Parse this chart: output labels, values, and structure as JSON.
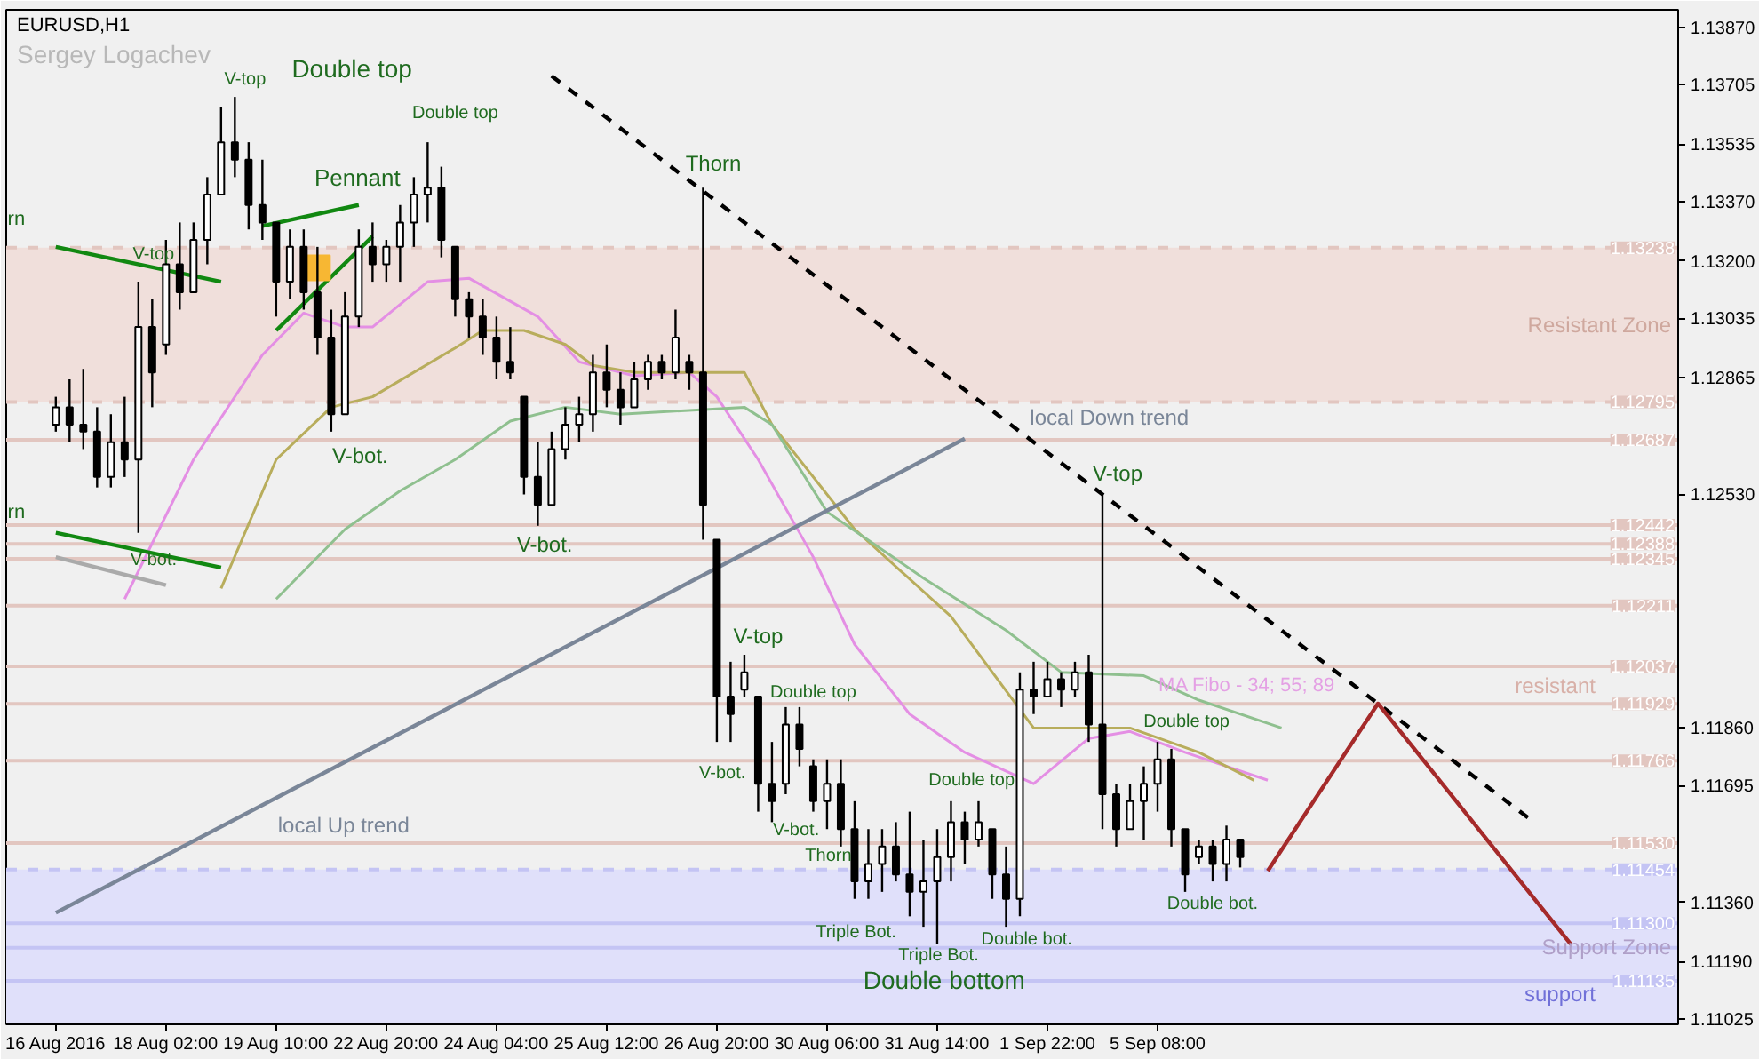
{
  "chart_data": {
    "type": "candlestick",
    "title": "EURUSD,H1",
    "subtitle": "Sergey Logachev",
    "color": "#000000",
    "categories": [
      "16 Aug 2016",
      null,
      null,
      null,
      null,
      null,
      null,
      null,
      "18 Aug 02:00",
      null,
      null,
      null,
      null,
      null,
      null,
      null,
      "19 Aug 10:00",
      null,
      null,
      null,
      null,
      null,
      null,
      null,
      "22 Aug 20:00",
      null,
      null,
      null,
      null,
      null,
      null,
      null,
      "24 Aug 04:00",
      null,
      null,
      null,
      null,
      null,
      null,
      null,
      "25 Aug 12:00",
      null,
      null,
      null,
      null,
      null,
      null,
      null,
      "26 Aug 20:00",
      null,
      null,
      null,
      null,
      null,
      null,
      null,
      "30 Aug 06:00",
      null,
      null,
      null,
      null,
      null,
      null,
      null,
      "31 Aug 14:00",
      null,
      null,
      null,
      null,
      null,
      null,
      null,
      "1 Sep 22:00",
      null,
      null,
      null,
      null,
      null,
      null,
      null,
      "5 Sep 08:00",
      null,
      null,
      null,
      null,
      null,
      null,
      null,
      null,
      null,
      null,
      null,
      null,
      null,
      null,
      null,
      null,
      null,
      null,
      null,
      null,
      null,
      null,
      null,
      null,
      null,
      null,
      null,
      null,
      null,
      null,
      null,
      null,
      null,
      null,
      null,
      null,
      null
    ],
    "ohlc": [
      [
        1.1273,
        1.1281,
        1.1271,
        1.1278
      ],
      [
        1.1278,
        1.1286,
        1.1268,
        1.1273
      ],
      [
        1.1273,
        1.1289,
        1.1266,
        1.1271
      ],
      [
        1.1271,
        1.1278,
        1.1255,
        1.1258
      ],
      [
        1.1258,
        1.1276,
        1.1255,
        1.1268
      ],
      [
        1.1268,
        1.1281,
        1.1258,
        1.1263
      ],
      [
        1.1263,
        1.1314,
        1.1242,
        1.1301
      ],
      [
        1.1301,
        1.1309,
        1.1278,
        1.1288
      ],
      [
        1.1296,
        1.1326,
        1.1293,
        1.1319
      ],
      [
        1.1319,
        1.1331,
        1.1306,
        1.1311
      ],
      [
        1.1311,
        1.1331,
        1.1311,
        1.1326
      ],
      [
        1.1326,
        1.1344,
        1.1319,
        1.1339
      ],
      [
        1.1339,
        1.1364,
        1.1339,
        1.1354
      ],
      [
        1.1354,
        1.1367,
        1.1344,
        1.1349
      ],
      [
        1.1349,
        1.1354,
        1.1329,
        1.1336
      ],
      [
        1.1336,
        1.1349,
        1.1326,
        1.1331
      ],
      [
        1.1331,
        1.1331,
        1.1304,
        1.1314
      ],
      [
        1.1314,
        1.1329,
        1.1309,
        1.1324
      ],
      [
        1.1324,
        1.1329,
        1.1306,
        1.1311
      ],
      [
        1.1311,
        1.1324,
        1.1293,
        1.1298
      ],
      [
        1.1298,
        1.1306,
        1.1271,
        1.1276
      ],
      [
        1.1276,
        1.1311,
        1.1276,
        1.1304
      ],
      [
        1.1304,
        1.1329,
        1.1301,
        1.1324
      ],
      [
        1.1324,
        1.1331,
        1.1314,
        1.1319
      ],
      [
        1.1319,
        1.1326,
        1.1314,
        1.1324
      ],
      [
        1.1324,
        1.1336,
        1.1314,
        1.1331
      ],
      [
        1.1331,
        1.1344,
        1.1324,
        1.1339
      ],
      [
        1.1339,
        1.1354,
        1.1331,
        1.1341
      ],
      [
        1.1341,
        1.1347,
        1.1321,
        1.1326
      ],
      [
        1.1324,
        1.1324,
        1.1304,
        1.1309
      ],
      [
        1.1309,
        1.1311,
        1.1298,
        1.1304
      ],
      [
        1.1304,
        1.1309,
        1.1293,
        1.1298
      ],
      [
        1.1298,
        1.1304,
        1.1286,
        1.1291
      ],
      [
        1.1291,
        1.1301,
        1.1286,
        1.1288
      ],
      [
        1.1281,
        1.1281,
        1.1253,
        1.1258
      ],
      [
        1.1258,
        1.1268,
        1.1244,
        1.125
      ],
      [
        1.125,
        1.1271,
        1.125,
        1.1266
      ],
      [
        1.1266,
        1.1278,
        1.1263,
        1.1273
      ],
      [
        1.1273,
        1.1281,
        1.1268,
        1.1276
      ],
      [
        1.1276,
        1.1293,
        1.1271,
        1.1288
      ],
      [
        1.1288,
        1.1296,
        1.1278,
        1.1283
      ],
      [
        1.1283,
        1.1288,
        1.1273,
        1.1278
      ],
      [
        1.1278,
        1.1291,
        1.1278,
        1.1286
      ],
      [
        1.1286,
        1.1293,
        1.1283,
        1.1291
      ],
      [
        1.1291,
        1.1293,
        1.1286,
        1.1288
      ],
      [
        1.1288,
        1.1306,
        1.1286,
        1.1298
      ],
      [
        1.1291,
        1.1293,
        1.1283,
        1.1288
      ],
      [
        1.1288,
        1.1341,
        1.124,
        1.125
      ],
      [
        1.124,
        1.124,
        1.1182,
        1.1195
      ],
      [
        1.1195,
        1.1205,
        1.1182,
        1.119
      ],
      [
        1.1197,
        1.1207,
        1.1195,
        1.1202
      ],
      [
        1.1195,
        1.1195,
        1.1162,
        1.117
      ],
      [
        1.117,
        1.1182,
        1.1159,
        1.1165
      ],
      [
        1.117,
        1.1192,
        1.1167,
        1.1187
      ],
      [
        1.1187,
        1.1192,
        1.1175,
        1.118
      ],
      [
        1.1175,
        1.1177,
        1.1162,
        1.1165
      ],
      [
        1.1165,
        1.1177,
        1.1157,
        1.117
      ],
      [
        1.117,
        1.1177,
        1.1152,
        1.1157
      ],
      [
        1.1157,
        1.1165,
        1.1137,
        1.1142
      ],
      [
        1.1142,
        1.1157,
        1.1137,
        1.1147
      ],
      [
        1.1147,
        1.1157,
        1.1139,
        1.1152
      ],
      [
        1.1152,
        1.1159,
        1.1142,
        1.1144
      ],
      [
        1.1144,
        1.1162,
        1.1132,
        1.1139
      ],
      [
        1.1139,
        1.1154,
        1.1129,
        1.1142
      ],
      [
        1.1142,
        1.1157,
        1.1124,
        1.1149
      ],
      [
        1.1149,
        1.1165,
        1.1142,
        1.1159
      ],
      [
        1.1159,
        1.1162,
        1.1147,
        1.1154
      ],
      [
        1.1154,
        1.1165,
        1.1152,
        1.1159
      ],
      [
        1.1157,
        1.1157,
        1.1137,
        1.1144
      ],
      [
        1.1144,
        1.1152,
        1.1129,
        1.1137
      ],
      [
        1.1137,
        1.1202,
        1.1132,
        1.1197
      ],
      [
        1.1197,
        1.1205,
        1.119,
        1.1195
      ],
      [
        1.1195,
        1.1205,
        1.1195,
        1.12
      ],
      [
        1.12,
        1.1202,
        1.1192,
        1.1197
      ],
      [
        1.1197,
        1.1205,
        1.1195,
        1.1202
      ],
      [
        1.1202,
        1.1207,
        1.1182,
        1.1187
      ],
      [
        1.1187,
        1.1253,
        1.1157,
        1.1167
      ],
      [
        1.1167,
        1.117,
        1.1152,
        1.1157
      ],
      [
        1.1157,
        1.117,
        1.1157,
        1.1165
      ],
      [
        1.1165,
        1.1175,
        1.1154,
        1.117
      ],
      [
        1.117,
        1.1182,
        1.1162,
        1.1177
      ],
      [
        1.1177,
        1.118,
        1.1152,
        1.1157
      ],
      [
        1.1157,
        1.1157,
        1.1139,
        1.1144
      ],
      [
        1.1149,
        1.1154,
        1.1147,
        1.1152
      ],
      [
        1.1152,
        1.1154,
        1.1142,
        1.1147
      ],
      [
        1.1147,
        1.1158,
        1.1142,
        1.1154
      ],
      [
        1.1154,
        1.1154,
        1.1146,
        1.1149
      ],
      null,
      null,
      null,
      null,
      null,
      null,
      null,
      null,
      null,
      null,
      null,
      null,
      null,
      null,
      null,
      null,
      null,
      null,
      null,
      null,
      null,
      null,
      null,
      null,
      null,
      null,
      null,
      null,
      null,
      null,
      null
    ],
    "series": [
      {
        "type": "line",
        "color": "#e48fe4",
        "values": [
          null,
          null,
          null,
          null,
          null,
          1.1223,
          null,
          null,
          null,
          null,
          1.1263,
          null,
          null,
          null,
          null,
          1.1293,
          null,
          null,
          1.1305,
          null,
          null,
          1.1301,
          null,
          1.1301,
          null,
          null,
          null,
          1.1314,
          null,
          null,
          1.1315,
          null,
          null,
          null,
          null,
          1.1304,
          null,
          null,
          1.1291,
          null,
          null,
          null,
          1.1287,
          null,
          null,
          null,
          1.1288,
          null,
          1.1281,
          null,
          null,
          1.1263,
          null,
          null,
          null,
          1.1235,
          null,
          null,
          1.121,
          null,
          null,
          null,
          1.119,
          null,
          null,
          null,
          1.1179,
          null,
          null,
          null,
          null,
          1.117,
          null,
          null,
          null,
          1.1183,
          null,
          null,
          1.1185,
          null,
          null,
          null,
          1.1179,
          null,
          null,
          null,
          null,
          null,
          1.1171,
          null,
          null,
          null,
          null,
          null,
          null,
          null,
          null,
          null,
          null,
          null,
          null,
          null,
          null,
          null,
          null,
          null,
          null,
          null,
          null,
          null,
          null,
          null,
          null,
          null,
          null,
          null,
          null,
          null
        ]
      },
      {
        "type": "line",
        "color": "#b8ad5c",
        "values": [
          null,
          null,
          null,
          null,
          null,
          null,
          null,
          null,
          null,
          null,
          null,
          null,
          1.1226,
          null,
          null,
          null,
          1.1263,
          null,
          null,
          null,
          1.1278,
          null,
          null,
          1.1281,
          null,
          null,
          null,
          null,
          null,
          1.1295,
          null,
          1.13,
          null,
          null,
          1.13,
          null,
          null,
          1.1296,
          null,
          1.129,
          null,
          null,
          1.1288,
          null,
          null,
          null,
          null,
          null,
          null,
          null,
          1.1288,
          null,
          1.1273,
          null,
          null,
          null,
          null,
          null,
          1.1243,
          null,
          null,
          null,
          null,
          null,
          null,
          1.1218,
          null,
          null,
          null,
          null,
          null,
          1.1186,
          null,
          null,
          null,
          1.1186,
          null,
          null,
          1.1186,
          null,
          null,
          null,
          null,
          1.1179,
          null,
          null,
          null,
          1.1171,
          null,
          null,
          null,
          null,
          null,
          null,
          null,
          null,
          null,
          null,
          null,
          null,
          null,
          null,
          null,
          null,
          null,
          null,
          null,
          null,
          null,
          null,
          null,
          null,
          null,
          null,
          null,
          null,
          null,
          null
        ]
      },
      {
        "type": "line",
        "color": "#8fc08f",
        "values": [
          null,
          null,
          null,
          null,
          null,
          null,
          null,
          null,
          null,
          null,
          null,
          null,
          null,
          null,
          null,
          null,
          1.1223,
          null,
          null,
          null,
          null,
          1.1243,
          null,
          null,
          null,
          1.1254,
          null,
          null,
          null,
          1.1263,
          null,
          null,
          null,
          1.1274,
          null,
          null,
          null,
          1.1278,
          null,
          null,
          null,
          1.1276,
          null,
          null,
          null,
          null,
          null,
          null,
          null,
          null,
          1.1278,
          null,
          1.1273,
          null,
          null,
          null,
          1.1248,
          null,
          null,
          null,
          null,
          null,
          null,
          1.1229,
          null,
          null,
          null,
          null,
          null,
          1.1214,
          null,
          null,
          null,
          1.1202,
          null,
          null,
          null,
          null,
          null,
          1.1201,
          null,
          null,
          null,
          1.1194,
          null,
          null,
          null,
          null,
          null,
          1.1186,
          null,
          null,
          null,
          null,
          null,
          null,
          null,
          null,
          null,
          null,
          null,
          null,
          null,
          null,
          null,
          null,
          null,
          null,
          null,
          null,
          null,
          null,
          null,
          null,
          null,
          null,
          null,
          null
        ]
      },
      {
        "type": "line",
        "color": "#7a8698",
        "values": [
          1.1133,
          null,
          null,
          null,
          null,
          null,
          null,
          null,
          null,
          null,
          null,
          null,
          null,
          null,
          null,
          null,
          null,
          null,
          null,
          null,
          null,
          null,
          null,
          null,
          null,
          null,
          null,
          null,
          null,
          null,
          null,
          null,
          null,
          null,
          null,
          null,
          null,
          null,
          null,
          null,
          null,
          null,
          null,
          null,
          null,
          null,
          null,
          null,
          null,
          null,
          null,
          null,
          null,
          null,
          null,
          null,
          null,
          null,
          null,
          null,
          null,
          null,
          null,
          null,
          null,
          null,
          1.1269,
          null,
          null,
          null,
          null,
          null,
          null,
          null,
          null,
          null,
          null,
          null,
          null,
          null,
          null,
          null,
          null,
          null,
          null,
          null,
          null,
          null,
          null,
          null,
          null,
          null,
          null,
          null,
          null,
          null,
          null,
          null,
          null,
          null,
          null,
          null,
          null,
          null,
          null,
          null,
          null,
          null,
          null,
          null,
          null,
          null,
          null,
          null,
          null,
          null,
          null,
          null
        ]
      },
      {
        "type": "line",
        "color": "#000000",
        "line_style": "dashed",
        "values": [
          null,
          null,
          null,
          null,
          null,
          null,
          null,
          null,
          null,
          null,
          null,
          null,
          null,
          null,
          null,
          null,
          null,
          null,
          null,
          null,
          null,
          null,
          null,
          null,
          null,
          null,
          null,
          null,
          null,
          null,
          null,
          null,
          null,
          null,
          null,
          null,
          1.1373,
          null,
          null,
          null,
          null,
          null,
          null,
          null,
          null,
          null,
          null,
          null,
          null,
          null,
          null,
          null,
          null,
          null,
          null,
          null,
          null,
          null,
          null,
          null,
          null,
          null,
          null,
          null,
          null,
          null,
          null,
          null,
          null,
          null,
          null,
          null,
          null,
          null,
          null,
          null,
          null,
          null,
          null,
          null,
          null,
          null,
          null,
          null,
          null,
          null,
          null,
          null,
          null,
          null,
          null,
          null,
          null,
          null,
          null,
          null,
          null,
          null,
          null,
          null,
          null,
          null,
          null,
          null,
          null,
          null,
          null,
          1.116,
          null,
          null,
          null,
          null,
          null,
          null,
          null,
          null,
          null,
          null
        ]
      },
      {
        "type": "line",
        "color": "#a52a2a",
        "values": [
          null,
          null,
          null,
          null,
          null,
          null,
          null,
          null,
          null,
          null,
          null,
          null,
          null,
          null,
          null,
          null,
          null,
          null,
          null,
          null,
          null,
          null,
          null,
          null,
          null,
          null,
          null,
          null,
          null,
          null,
          null,
          null,
          null,
          null,
          null,
          null,
          null,
          null,
          null,
          null,
          null,
          null,
          null,
          null,
          null,
          null,
          null,
          null,
          null,
          null,
          null,
          null,
          null,
          null,
          null,
          null,
          null,
          null,
          null,
          null,
          null,
          null,
          null,
          null,
          null,
          null,
          null,
          null,
          null,
          null,
          null,
          null,
          null,
          null,
          null,
          null,
          null,
          null,
          null,
          null,
          null,
          null,
          null,
          null,
          null,
          null,
          null,
          null,
          1.1145,
          null,
          null,
          null,
          null,
          null,
          null,
          null,
          1.1193,
          null,
          null,
          null,
          null,
          null,
          null,
          null,
          null,
          null,
          null,
          null,
          null,
          null,
          1.1124,
          null,
          null,
          null,
          null,
          null,
          null,
          null
        ]
      },
      {
        "type": "line",
        "color": "#118811",
        "values": [
          null,
          null,
          null,
          null,
          null,
          null,
          null,
          null,
          null,
          null,
          null,
          null,
          null,
          null,
          null,
          1.133,
          null,
          null,
          null,
          null,
          null,
          null,
          1.1336,
          null,
          null,
          null,
          null,
          null,
          null,
          null,
          null,
          null,
          null,
          null,
          null,
          null,
          null,
          null,
          null,
          null,
          null,
          null,
          null,
          null,
          null,
          null,
          null,
          null,
          null,
          null,
          null,
          null,
          null,
          null,
          null,
          null,
          null,
          null,
          null,
          null,
          null,
          null,
          null,
          null,
          null,
          null,
          null,
          null,
          null,
          null,
          null,
          null,
          null,
          null,
          null,
          null,
          null,
          null,
          null,
          null,
          null,
          null,
          null,
          null,
          null,
          null,
          null,
          null,
          null,
          null,
          null,
          null,
          null,
          null,
          null,
          null,
          null,
          null,
          null,
          null,
          null,
          null,
          null,
          null,
          null,
          null,
          null,
          null,
          null,
          null,
          null,
          null,
          null,
          null,
          null,
          null,
          null,
          null
        ]
      },
      {
        "type": "line",
        "color": "#118811",
        "values": [
          null,
          null,
          null,
          null,
          null,
          null,
          null,
          null,
          null,
          null,
          null,
          null,
          null,
          null,
          null,
          null,
          1.13,
          null,
          null,
          null,
          null,
          null,
          null,
          1.1327,
          null,
          null,
          null,
          null,
          null,
          null,
          null,
          null,
          null,
          null,
          null,
          null,
          null,
          null,
          null,
          null,
          null,
          null,
          null,
          null,
          null,
          null,
          null,
          null,
          null,
          null,
          null,
          null,
          null,
          null,
          null,
          null,
          null,
          null,
          null,
          null,
          null,
          null,
          null,
          null,
          null,
          null,
          null,
          null,
          null,
          null,
          null,
          null,
          null,
          null,
          null,
          null,
          null,
          null,
          null,
          null,
          null,
          null,
          null,
          null,
          null,
          null,
          null,
          null,
          null,
          null,
          null,
          null,
          null,
          null,
          null,
          null,
          null,
          null,
          null,
          null,
          null,
          null,
          null,
          null,
          null,
          null,
          null,
          null,
          null,
          null,
          null,
          null,
          null,
          null,
          null,
          null,
          null,
          null
        ]
      },
      {
        "type": "line",
        "color": "#118811",
        "values": [
          1.1324,
          null,
          null,
          null,
          null,
          null,
          null,
          null,
          null,
          null,
          null,
          null,
          1.1314,
          null,
          null,
          null,
          null,
          null,
          null,
          null,
          null,
          null,
          null,
          null,
          null,
          null,
          null,
          null,
          null,
          null,
          null,
          null,
          null,
          null,
          null,
          null,
          null,
          null,
          null,
          null,
          null,
          null,
          null,
          null,
          null,
          null,
          null,
          null,
          null,
          null,
          null,
          null,
          null,
          null,
          null,
          null,
          null,
          null,
          null,
          null,
          null,
          null,
          null,
          null,
          null,
          null,
          null,
          null,
          null,
          null,
          null,
          null,
          null,
          null,
          null,
          null,
          null,
          null,
          null,
          null,
          null,
          null,
          null,
          null,
          null,
          null,
          null,
          null,
          null,
          null,
          null,
          null,
          null,
          null,
          null,
          null,
          null,
          null,
          null,
          null,
          null,
          null,
          null,
          null,
          null,
          null,
          null,
          null,
          null,
          null,
          null,
          null,
          null,
          null,
          null,
          null,
          null,
          null
        ]
      },
      {
        "type": "line",
        "color": "#118811",
        "values": [
          1.1242,
          null,
          null,
          null,
          null,
          null,
          null,
          null,
          null,
          null,
          null,
          null,
          1.1232,
          null,
          null,
          null,
          null,
          null,
          null,
          null,
          null,
          null,
          null,
          null,
          null,
          null,
          null,
          null,
          null,
          null,
          null,
          null,
          null,
          null,
          null,
          null,
          null,
          null,
          null,
          null,
          null,
          null,
          null,
          null,
          null,
          null,
          null,
          null,
          null,
          null,
          null,
          null,
          null,
          null,
          null,
          null,
          null,
          null,
          null,
          null,
          null,
          null,
          null,
          null,
          null,
          null,
          null,
          null,
          null,
          null,
          null,
          null,
          null,
          null,
          null,
          null,
          null,
          null,
          null,
          null,
          null,
          null,
          null,
          null,
          null,
          null,
          null,
          null,
          null,
          null,
          null,
          null,
          null,
          null,
          null,
          null,
          null,
          null,
          null,
          null,
          null,
          null,
          null,
          null,
          null,
          null,
          null,
          null,
          null,
          null,
          null,
          null,
          null,
          null,
          null,
          null,
          null,
          null
        ]
      },
      {
        "type": "line",
        "color": "#aaaaaa",
        "values": [
          1.1235,
          null,
          null,
          null,
          null,
          null,
          null,
          null,
          1.1227,
          null,
          null,
          null,
          null,
          null,
          null,
          null,
          null,
          null,
          null,
          null,
          null,
          null,
          null,
          null,
          null,
          null,
          null,
          null,
          null,
          null,
          null,
          null,
          null,
          null,
          null,
          null,
          null,
          null,
          null,
          null,
          null,
          null,
          null,
          null,
          null,
          null,
          null,
          null,
          null,
          null,
          null,
          null,
          null,
          null,
          null,
          null,
          null,
          null,
          null,
          null,
          null,
          null,
          null,
          null,
          null,
          null,
          null,
          null,
          null,
          null,
          null,
          null,
          null,
          null,
          null,
          null,
          null,
          null,
          null,
          null,
          null,
          null,
          null,
          null,
          null,
          null,
          null,
          null,
          null,
          null,
          null,
          null,
          null,
          null,
          null,
          null,
          null,
          null,
          null,
          null,
          null,
          null,
          null,
          null,
          null,
          null,
          null,
          null,
          null,
          null,
          null,
          null,
          null,
          null,
          null,
          null,
          null,
          null
        ]
      },
      {
        "type": "scatter",
        "marker": "square",
        "color": "#f7b733",
        "values": [
          null,
          null,
          null,
          null,
          null,
          null,
          null,
          null,
          null,
          null,
          null,
          null,
          null,
          null,
          null,
          null,
          null,
          null,
          null,
          1.1318,
          null,
          null,
          null,
          null,
          null,
          null,
          null,
          null,
          null,
          null,
          null,
          null,
          null,
          null,
          null,
          null,
          null,
          null,
          null,
          null,
          null,
          null,
          null,
          null,
          null,
          null,
          null,
          null,
          null,
          null,
          null,
          null,
          null,
          null,
          null,
          null,
          null,
          null,
          null,
          null,
          null,
          null,
          null,
          null,
          null,
          null,
          null,
          null,
          null,
          null,
          null,
          null,
          null,
          null,
          null,
          null,
          null,
          null,
          null,
          null,
          null,
          null,
          null,
          null,
          null,
          null,
          null,
          null,
          null,
          null,
          null,
          null,
          null,
          null,
          null,
          null,
          null,
          null,
          null,
          null,
          null,
          null,
          null,
          null,
          null,
          null,
          null,
          null,
          null,
          null,
          null,
          null,
          null,
          null,
          null,
          null,
          null,
          null
        ]
      }
    ],
    "ylim": [
      1.1101,
      1.1392
    ],
    "yticks": [
      {
        "value": 1.1387,
        "label": "1.13870"
      },
      {
        "value": 1.13705,
        "label": "1.13705"
      },
      {
        "value": 1.13535,
        "label": "1.13535"
      },
      {
        "value": 1.1337,
        "label": "1.13370"
      },
      {
        "value": 1.132,
        "label": "1.13200"
      },
      {
        "value": 1.13035,
        "label": "1.13035"
      },
      {
        "value": 1.12865,
        "label": "1.12865"
      },
      {
        "value": 1.1253,
        "label": "1.12530"
      },
      {
        "value": 1.1186,
        "label": "1.11860"
      },
      {
        "value": 1.11695,
        "label": "1.11695"
      },
      {
        "value": 1.1136,
        "label": "1.11360"
      },
      {
        "value": 1.1119,
        "label": "1.11190"
      },
      {
        "value": 1.11025,
        "label": "1.11025"
      }
    ],
    "bands": [
      {
        "axis": "y",
        "from": 1.12795,
        "to": 1.13238,
        "label": "Resistant Zone",
        "color": "#f0dfdb"
      },
      {
        "axis": "y",
        "from": 1.1101,
        "to": 1.11454,
        "label": "Support Zone",
        "color": "#e0e0fa"
      }
    ],
    "ref_lines": [
      {
        "axis": "y",
        "value": 1.13238,
        "label": "1.13238",
        "color": "#e2c6c0",
        "line_style": "dashed"
      },
      {
        "axis": "y",
        "value": 1.12795,
        "label": "1.12795",
        "color": "#e2c6c0",
        "line_style": "dashed"
      },
      {
        "axis": "y",
        "value": 1.12687,
        "label": "1.12687",
        "color": "#e2c6c0"
      },
      {
        "axis": "y",
        "value": 1.12442,
        "label": "1.12442",
        "color": "#e2c6c0"
      },
      {
        "axis": "y",
        "value": 1.12388,
        "label": "1.12388",
        "color": "#e2c6c0"
      },
      {
        "axis": "y",
        "value": 1.12345,
        "label": "1.12345",
        "color": "#e2c6c0"
      },
      {
        "axis": "y",
        "value": 1.12211,
        "label": "1.12211",
        "color": "#e2c6c0"
      },
      {
        "axis": "y",
        "value": 1.12037,
        "label": "1.12037",
        "color": "#e2c6c0"
      },
      {
        "axis": "y",
        "value": 1.11929,
        "label": "1.11929",
        "color": "#e2c6c0"
      },
      {
        "axis": "y",
        "value": 1.11766,
        "label": "1.11766",
        "color": "#e2c6c0"
      },
      {
        "axis": "y",
        "value": 1.1153,
        "label": "1.11530",
        "color": "#e2c6c0"
      },
      {
        "axis": "y",
        "value": 1.11454,
        "label": "1.11454",
        "color": "#c4c4f4",
        "line_style": "dashed"
      },
      {
        "axis": "y",
        "value": 1.113,
        "label": "1.11300",
        "color": "#c4c4f4"
      },
      {
        "axis": "y",
        "value": 1.1123,
        "label": null,
        "color": "#c4c4f4"
      },
      {
        "axis": "y",
        "value": 1.11135,
        "label": "1.11135",
        "color": "#c4c4f4"
      }
    ],
    "annotations": [
      "Double top",
      "V-top",
      "Pennant",
      "rn",
      "rn",
      "Double bottom",
      "MA Fibo - 34; 55; 89",
      "local Up trend",
      "local Down trend",
      "resistant",
      "support",
      "V-top",
      "Double top",
      "Thorn",
      "V-bot.",
      "V-bot.",
      "V-bot.",
      "V-top",
      "V-bot.",
      "Double top",
      "V-bot.",
      "Thorn",
      "Triple Bot.",
      "Triple Bot.",
      "Double top",
      "Double bot.",
      "V-top",
      "Double top",
      "Double bot."
    ]
  }
}
